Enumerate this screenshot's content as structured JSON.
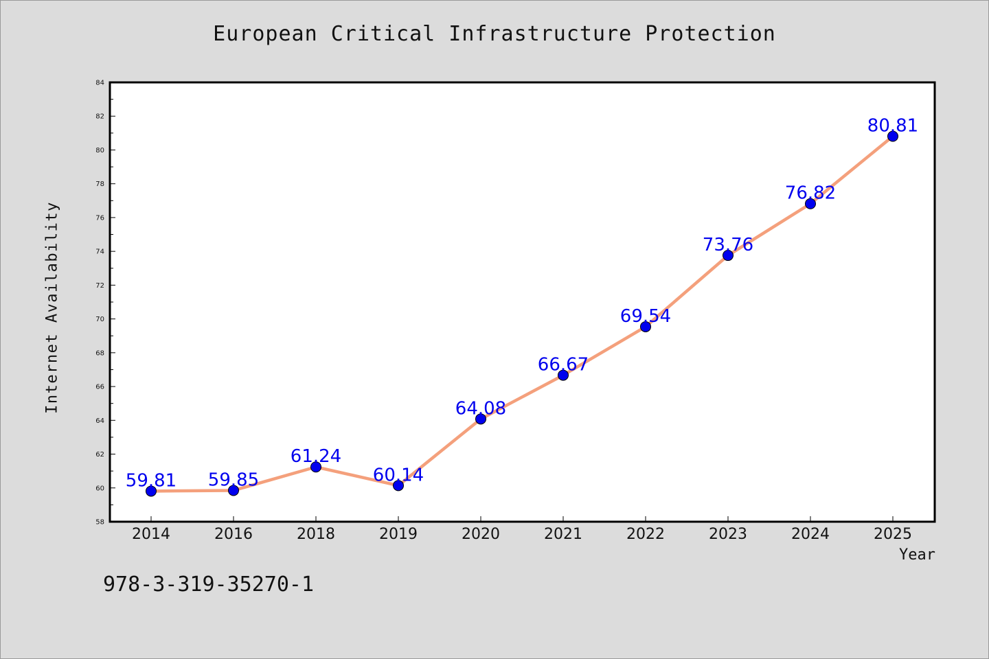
{
  "chart_data": {
    "type": "line",
    "title": "European Critical Infrastructure Protection",
    "xlabel": "Year",
    "ylabel": "Internet Availability",
    "categories": [
      "2014",
      "2016",
      "2018",
      "2019",
      "2020",
      "2021",
      "2022",
      "2023",
      "2024",
      "2025"
    ],
    "series": [
      {
        "values": [
          59.81,
          59.85,
          61.24,
          60.14,
          64.08,
          66.67,
          69.54,
          73.76,
          76.82,
          80.81
        ],
        "data_labels": [
          "59.81",
          "59.85",
          "61.24",
          "60.14",
          "64.08",
          "66.67",
          "69.54",
          "73.76",
          "76.82",
          "80.81"
        ],
        "line_color": "#f4a07c",
        "marker_color": "#0000ee"
      }
    ],
    "ylim": [
      58,
      84
    ],
    "yticks": [
      "58",
      "60",
      "62",
      "64",
      "66",
      "68",
      "70",
      "72",
      "74",
      "76",
      "78",
      "80",
      "82",
      "84"
    ],
    "grid": false,
    "legend": "none"
  },
  "footnote": "978-3-319-35270-1",
  "colors": {
    "background": "#dcdcdc",
    "plot_background": "#ffffff",
    "data_label": "#0000ee"
  }
}
